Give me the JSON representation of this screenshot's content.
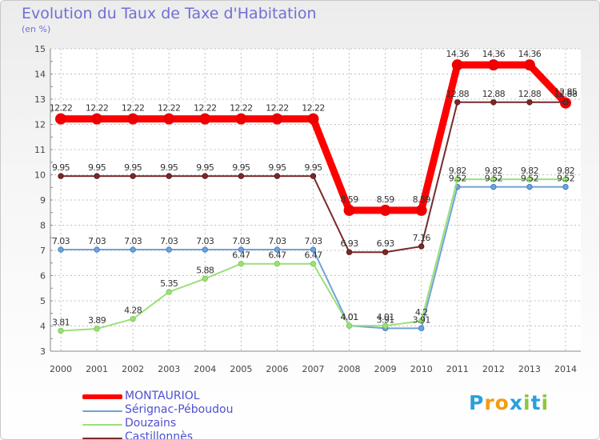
{
  "chart_data": {
    "type": "line",
    "title": "Evolution du Taux de Taxe d'Habitation",
    "ylabel": "(en %)",
    "xlabel": "",
    "ylim": [
      3,
      15
    ],
    "yticks": [
      "3",
      "4",
      "5",
      "6",
      "7",
      "8",
      "9",
      "10",
      "11",
      "12",
      "13",
      "14",
      "15"
    ],
    "categories": [
      "2000",
      "2001",
      "2002",
      "2003",
      "2004",
      "2005",
      "2006",
      "2007",
      "2008",
      "2009",
      "2010",
      "2011",
      "2012",
      "2013",
      "2014"
    ],
    "grid": true,
    "legend_position": "bottom-left",
    "series": [
      {
        "name": "MONTAURIOL",
        "color": "#ff0000",
        "values": [
          12.22,
          12.22,
          12.22,
          12.22,
          12.22,
          12.22,
          12.22,
          12.22,
          8.59,
          8.59,
          8.59,
          14.36,
          14.36,
          14.36,
          12.85
        ],
        "labels": [
          "12.22",
          "12.22",
          "12.22",
          "12.22",
          "12.22",
          "12.22",
          "12.22",
          "12.22",
          "8.59",
          "8.59",
          "8.59",
          "14.36",
          "14.36",
          "14.36",
          "12.85"
        ]
      },
      {
        "name": "Sérignac-Péboudou",
        "color": "#6fa3d9",
        "values": [
          7.03,
          7.03,
          7.03,
          7.03,
          7.03,
          7.03,
          7.03,
          7.03,
          4.01,
          3.91,
          3.91,
          9.52,
          9.52,
          9.52,
          9.52
        ],
        "labels": [
          "7.03",
          "7.03",
          "7.03",
          "7.03",
          "7.03",
          "7.03",
          "7.03",
          "7.03",
          "4.01",
          "3.91",
          "3.91",
          "9.52",
          "9.52",
          "9.52",
          "9.52"
        ]
      },
      {
        "name": "Douzains",
        "color": "#9be07a",
        "values": [
          3.81,
          3.89,
          4.28,
          5.35,
          5.88,
          6.47,
          6.47,
          6.47,
          4.01,
          4.01,
          4.2,
          9.82,
          9.82,
          9.82,
          9.82
        ],
        "labels": [
          "3.81",
          "3.89",
          "4.28",
          "5.35",
          "5.88",
          "6.47",
          "6.47",
          "6.47",
          "4.01",
          "4.01",
          "4.2",
          "9.82",
          "9.82",
          "9.82",
          "9.82"
        ]
      },
      {
        "name": "Castillonnès",
        "color": "#7a2a2a",
        "values": [
          9.95,
          9.95,
          9.95,
          9.95,
          9.95,
          9.95,
          9.95,
          9.95,
          6.93,
          6.93,
          7.16,
          12.88,
          12.88,
          12.88,
          12.88
        ],
        "labels": [
          "9.95",
          "9.95",
          "9.95",
          "9.95",
          "9.95",
          "9.95",
          "9.95",
          "9.95",
          "6.93",
          "6.93",
          "7.16",
          "12.88",
          "12.88",
          "12.88",
          "12.88"
        ]
      }
    ]
  },
  "logo": {
    "letters": [
      "P",
      "r",
      "o",
      "x",
      "i",
      "t",
      "i"
    ],
    "colors": [
      "#2aa0dd",
      "#f39c12",
      "#f39c12",
      "#2aa0dd",
      "#8cc63f",
      "#2aa0dd",
      "#8cc63f"
    ]
  }
}
